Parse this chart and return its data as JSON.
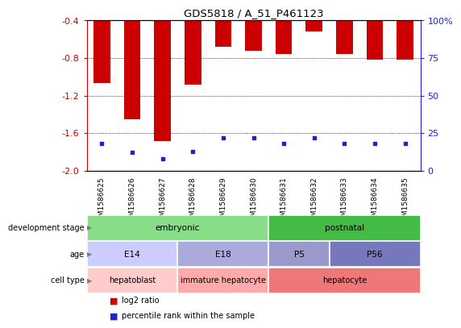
{
  "title": "GDS5818 / A_51_P461123",
  "samples": [
    "GSM1586625",
    "GSM1586626",
    "GSM1586627",
    "GSM1586628",
    "GSM1586629",
    "GSM1586630",
    "GSM1586631",
    "GSM1586632",
    "GSM1586633",
    "GSM1586634",
    "GSM1586635"
  ],
  "log2_values": [
    -1.07,
    -1.45,
    -1.68,
    -1.08,
    -0.68,
    -0.72,
    -0.76,
    -0.52,
    -0.76,
    -0.82,
    -0.82
  ],
  "percentile_values": [
    18,
    12,
    8,
    13,
    22,
    22,
    18,
    22,
    18,
    18,
    18
  ],
  "ylim_left": [
    -2.0,
    -0.4
  ],
  "ylim_right": [
    0,
    100
  ],
  "yticks_left": [
    -2.0,
    -1.6,
    -1.2,
    -0.8,
    -0.4
  ],
  "yticks_right": [
    0,
    25,
    50,
    75,
    100
  ],
  "bar_color": "#cc0000",
  "dot_color": "#2222cc",
  "development_stage": {
    "embryonic": {
      "start": 0,
      "end": 6,
      "color": "#88dd88",
      "label": "embryonic"
    },
    "postnatal": {
      "start": 6,
      "end": 11,
      "color": "#44bb44",
      "label": "postnatal"
    }
  },
  "age": {
    "E14": {
      "start": 0,
      "end": 3,
      "color": "#ccccff",
      "label": "E14"
    },
    "E18": {
      "start": 3,
      "end": 6,
      "color": "#aaaadd",
      "label": "E18"
    },
    "P5": {
      "start": 6,
      "end": 8,
      "color": "#9999cc",
      "label": "P5"
    },
    "P56": {
      "start": 8,
      "end": 11,
      "color": "#7777bb",
      "label": "P56"
    }
  },
  "cell_type": {
    "hepatoblast": {
      "start": 0,
      "end": 3,
      "color": "#ffcccc",
      "label": "hepatoblast"
    },
    "immature_hepatocyte": {
      "start": 3,
      "end": 6,
      "color": "#ffaaaa",
      "label": "immature hepatocyte"
    },
    "hepatocyte": {
      "start": 6,
      "end": 11,
      "color": "#ee7777",
      "label": "hepatocyte"
    }
  },
  "row_labels": [
    "development stage",
    "age",
    "cell type"
  ],
  "left_axis_color": "#cc0000",
  "right_axis_color": "#2222cc",
  "spine_color": "#000000"
}
